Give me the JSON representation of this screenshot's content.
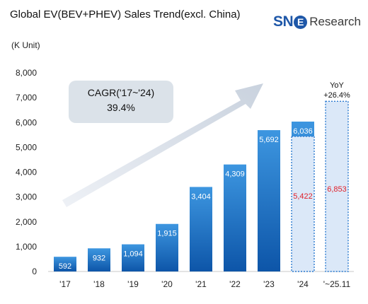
{
  "chart_data": {
    "type": "bar",
    "title": "Global EV(BEV+PHEV) Sales Trend(excl. China)",
    "unit_label": "(K Unit)",
    "categories": [
      "'17",
      "'18",
      "'19",
      "'20",
      "'21",
      "'22",
      "'23",
      "'24",
      "'~25.11"
    ],
    "series": [
      {
        "values": [
          592,
          932,
          1094,
          1915,
          3404,
          4309,
          5692,
          6036,
          null
        ],
        "labels": [
          "592",
          "932",
          "1,094",
          "1,915",
          "3,404",
          "4,309",
          "5,692",
          "6,036",
          null
        ],
        "color": "#1f78cc"
      },
      {
        "values": [
          null,
          null,
          null,
          null,
          null,
          null,
          null,
          5422,
          6853
        ],
        "labels": [
          null,
          null,
          null,
          null,
          null,
          null,
          null,
          "5,422",
          "6,853"
        ],
        "style": "dotted-outline",
        "color": "#dbe8f8",
        "label_color": "#e0202a"
      }
    ],
    "ylim": [
      0,
      8000
    ],
    "yticks": [
      0,
      1000,
      2000,
      3000,
      4000,
      5000,
      6000,
      7000,
      8000
    ],
    "ytick_labels": [
      "0",
      "1,000",
      "2,000",
      "3,000",
      "4,000",
      "5,000",
      "6,000",
      "7,000",
      "8,000"
    ],
    "grid": false,
    "annotations": {
      "cagr_label": "CAGR('17~'24)",
      "cagr_value": "39.4%",
      "yoy_label": "YoY",
      "yoy_value": "+26.4%"
    }
  },
  "brand": {
    "sn": "SN",
    "e": "E",
    "rest": "Research",
    "color": "#1e57a8"
  },
  "colors": {
    "bar_top": "#3d96e0",
    "bar_bottom": "#0d55a8",
    "arrow": "#dfe5ee",
    "callout": "#d8dfe7"
  }
}
